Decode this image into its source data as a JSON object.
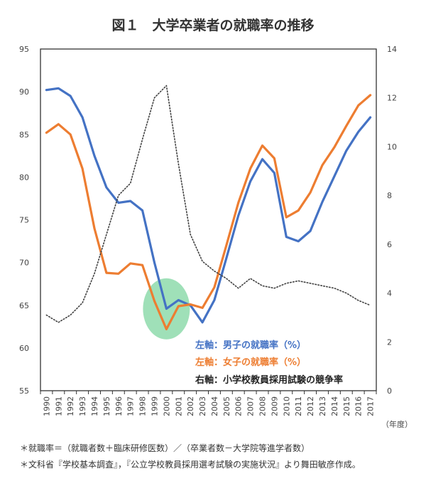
{
  "chart_data": {
    "type": "line",
    "title": "図１　大学卒業者の就職率の推移",
    "categories": [
      "1990",
      "1991",
      "1992",
      "1993",
      "1994",
      "1995",
      "1996",
      "1997",
      "1998",
      "1999",
      "2000",
      "2001",
      "2002",
      "2003",
      "2004",
      "2005",
      "2006",
      "2007",
      "2008",
      "2009",
      "2010",
      "2011",
      "2012",
      "2013",
      "2014",
      "2015",
      "2016",
      "2017"
    ],
    "x_unit": "（年度）",
    "left_axis": {
      "ylim": [
        55,
        95
      ],
      "ticks": [
        55,
        60,
        65,
        70,
        75,
        80,
        85,
        90,
        95
      ]
    },
    "right_axis": {
      "ylim": [
        0,
        14
      ],
      "ticks": [
        0,
        2,
        4,
        6,
        8,
        10,
        12,
        14
      ]
    },
    "series": [
      {
        "name": "左軸：男子の就職率（%）",
        "axis": "left",
        "color": "#4472C4",
        "style": "solid",
        "values": [
          90.2,
          90.4,
          89.5,
          87.0,
          82.5,
          78.8,
          77.0,
          77.2,
          76.1,
          70.0,
          64.6,
          65.6,
          65.0,
          63.0,
          65.6,
          70.5,
          75.5,
          79.5,
          82.1,
          80.5,
          73.0,
          72.5,
          73.7,
          77.1,
          80.1,
          83.1,
          85.3,
          87.0
        ]
      },
      {
        "name": "左軸：女子の就職率（%）",
        "axis": "left",
        "color": "#ED7D31",
        "style": "solid",
        "values": [
          85.2,
          86.2,
          85.0,
          81.0,
          74.0,
          68.8,
          68.7,
          69.9,
          69.7,
          65.5,
          62.2,
          64.9,
          65.1,
          64.7,
          67.1,
          72.0,
          77.0,
          81.0,
          83.7,
          82.2,
          75.3,
          76.1,
          78.2,
          81.4,
          83.5,
          86.0,
          88.4,
          89.6
        ]
      },
      {
        "name": "右軸：小学校教員採用試験の競争率",
        "axis": "right",
        "color": "#404040",
        "style": "dotted",
        "values": [
          3.1,
          2.8,
          3.1,
          3.6,
          4.8,
          6.4,
          8.0,
          8.5,
          10.3,
          12.0,
          12.5,
          9.3,
          6.4,
          5.3,
          4.9,
          4.6,
          4.2,
          4.6,
          4.3,
          4.2,
          4.4,
          4.5,
          4.4,
          4.3,
          4.2,
          4.0,
          3.7,
          3.5
        ]
      }
    ],
    "annotation": {
      "type": "highlight-circle",
      "x": "2000",
      "y": 65.0,
      "color": "#7fd6a0"
    }
  },
  "footnotes": [
    "＊就職率＝（就職者数＋臨床研修医数）／（卒業者数－大学院等進学者数）",
    "＊文科省『学校基本調査』，『公立学校教員採用選考試験の実施状況』より舞田敏彦作成。"
  ]
}
